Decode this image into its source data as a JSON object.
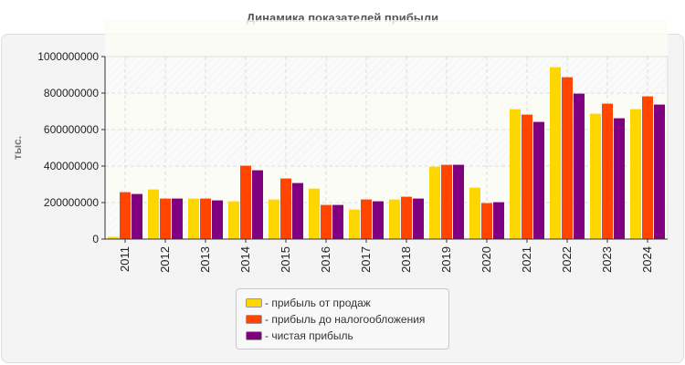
{
  "chart_data": {
    "type": "bar",
    "title": "Динамика показателей прибыли",
    "xlabel": "",
    "ylabel": "тыс.",
    "ylim": [
      0,
      1000000000
    ],
    "yticks": [
      "0",
      "200000000",
      "400000000",
      "600000000",
      "800000000",
      "1000000000"
    ],
    "grid": true,
    "legend_position": "bottom",
    "categories": [
      "2011",
      "2012",
      "2013",
      "2014",
      "2015",
      "2016",
      "2017",
      "2018",
      "2019",
      "2020",
      "2021",
      "2022",
      "2023",
      "2024"
    ],
    "series": [
      {
        "name": "- прибыль от продаж",
        "color": "#ffd700",
        "values": [
          12000000,
          272000000,
          222000000,
          207000000,
          217000000,
          277000000,
          162000000,
          217000000,
          397000000,
          282000000,
          712000000,
          942000000,
          687000000,
          712000000
        ]
      },
      {
        "name": "- прибыль до налогообложения",
        "color": "#ff4500",
        "values": [
          257000000,
          222000000,
          222000000,
          402000000,
          332000000,
          187000000,
          217000000,
          232000000,
          407000000,
          197000000,
          682000000,
          887000000,
          742000000,
          782000000
        ]
      },
      {
        "name": "- чистая прибыль",
        "color": "#800080",
        "values": [
          247000000,
          222000000,
          212000000,
          377000000,
          307000000,
          187000000,
          207000000,
          222000000,
          407000000,
          202000000,
          642000000,
          797000000,
          662000000,
          737000000
        ]
      }
    ]
  }
}
